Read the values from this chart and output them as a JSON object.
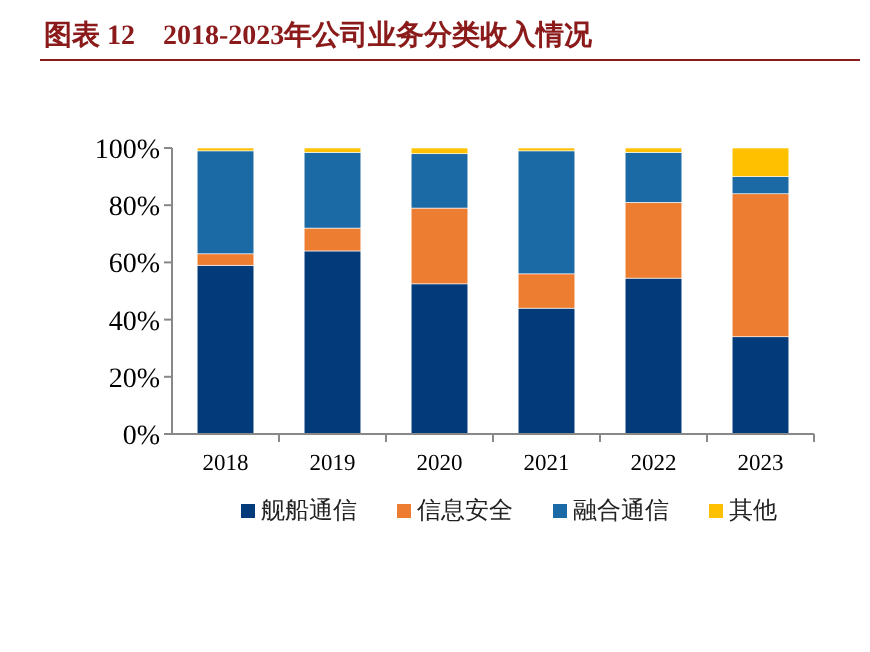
{
  "chart_data": {
    "type": "bar",
    "title": "图表 12　2018-2023年公司业务分类收入情况",
    "stacked": true,
    "legend": "bottom",
    "grid": false,
    "categories": [
      "2018",
      "2019",
      "2020",
      "2021",
      "2022",
      "2023"
    ],
    "ylim": [
      0,
      100
    ],
    "yticks": [
      {
        "value": 0,
        "label": "0%"
      },
      {
        "value": 20,
        "label": "20%"
      },
      {
        "value": 40,
        "label": "40%"
      },
      {
        "value": 60,
        "label": "60%"
      },
      {
        "value": 80,
        "label": "80%"
      },
      {
        "value": 100,
        "label": "100%"
      }
    ],
    "series": [
      {
        "name": "舰船通信",
        "color": "#033a7a",
        "values": [
          59,
          64,
          52.5,
          44,
          54.5,
          34
        ]
      },
      {
        "name": "信息安全",
        "color": "#ed7d31",
        "values": [
          4,
          8,
          26.5,
          12,
          26.5,
          50
        ]
      },
      {
        "name": "融合通信",
        "color": "#1b6aa5",
        "values": [
          36,
          26.5,
          19,
          43,
          17.5,
          6
        ]
      },
      {
        "name": "其他",
        "color": "#ffc000",
        "values": [
          1,
          1.5,
          2,
          1,
          1.5,
          10
        ]
      }
    ]
  }
}
